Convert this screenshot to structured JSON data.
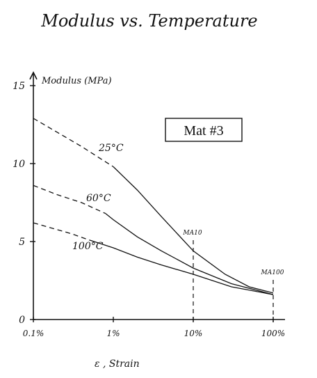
{
  "chart_data": {
    "type": "line",
    "title": "Modulus vs. Temperature",
    "ylabel": "Modulus (MPa)",
    "xlabel": "ε , Strain",
    "x_scale": "log",
    "x_ticks": [
      {
        "value": 0.1,
        "label": "0.1%"
      },
      {
        "value": 1,
        "label": "1%"
      },
      {
        "value": 10,
        "label": "10%"
      },
      {
        "value": 100,
        "label": "100%"
      }
    ],
    "y_ticks": [
      0,
      5,
      10,
      15
    ],
    "ylim": [
      0,
      15
    ],
    "xlim": [
      0.1,
      100
    ],
    "box_label": "Mat #3",
    "vlines": [
      {
        "x": 10,
        "label": "MA10"
      },
      {
        "x": 100,
        "label": "MA100"
      }
    ],
    "series": [
      {
        "name": "25°C",
        "dashed_until": 1.5,
        "points": [
          [
            0.1,
            12.9
          ],
          [
            0.2,
            12.0
          ],
          [
            0.4,
            11.1
          ],
          [
            0.7,
            10.3
          ],
          [
            1.0,
            9.8
          ],
          [
            2.0,
            8.3
          ],
          [
            4.0,
            6.6
          ],
          [
            10,
            4.4
          ],
          [
            25,
            2.9
          ],
          [
            50,
            2.1
          ],
          [
            100,
            1.7
          ]
        ]
      },
      {
        "name": "60°C",
        "dashed_until": 0.8,
        "points": [
          [
            0.1,
            8.6
          ],
          [
            0.2,
            8.0
          ],
          [
            0.4,
            7.5
          ],
          [
            0.8,
            6.8
          ],
          [
            1.0,
            6.4
          ],
          [
            2.0,
            5.3
          ],
          [
            4.0,
            4.4
          ],
          [
            10,
            3.3
          ],
          [
            30,
            2.3
          ],
          [
            100,
            1.6
          ]
        ]
      },
      {
        "name": "100°C",
        "dashed_until": 0.5,
        "points": [
          [
            0.1,
            6.2
          ],
          [
            0.3,
            5.5
          ],
          [
            0.5,
            5.1
          ],
          [
            1.0,
            4.6
          ],
          [
            2.0,
            4.0
          ],
          [
            4.0,
            3.5
          ],
          [
            10,
            2.9
          ],
          [
            30,
            2.1
          ],
          [
            100,
            1.6
          ]
        ]
      }
    ]
  }
}
